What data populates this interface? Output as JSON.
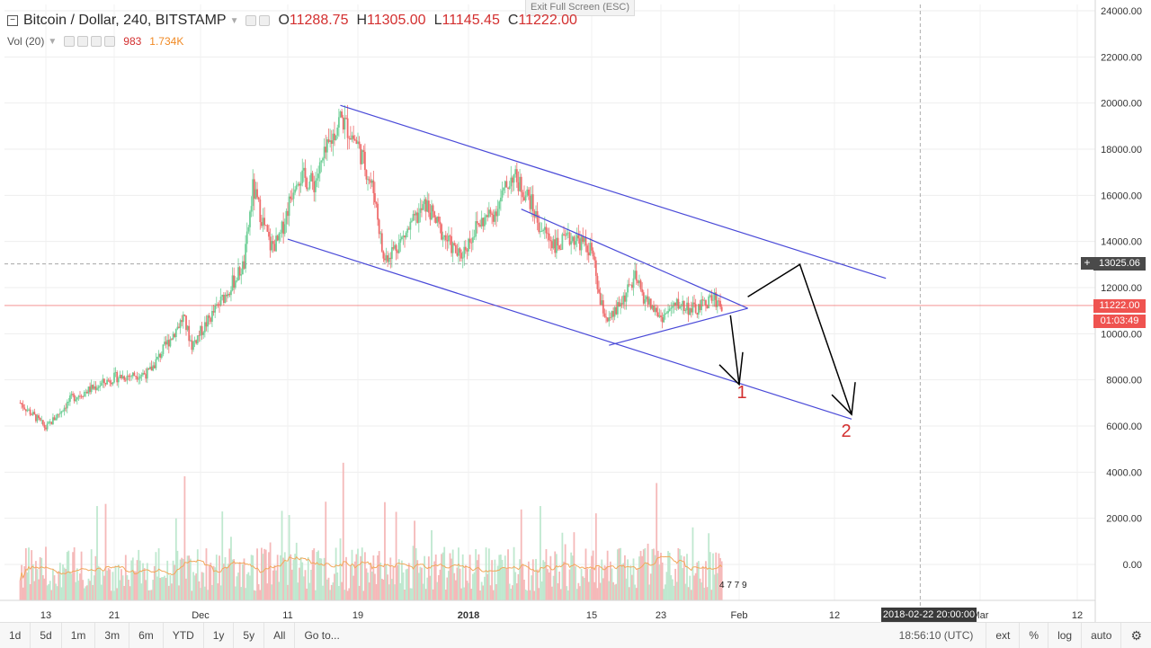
{
  "window": {
    "exit_fullscreen": "Exit Full Screen (ESC)"
  },
  "legend": {
    "symbol": "Bitcoin / Dollar, 240, BITSTAMP",
    "open_label": "O",
    "open": "11288.75",
    "high_label": "H",
    "high": "11305.00",
    "low_label": "L",
    "low": "11145.45",
    "close_label": "C",
    "close": "11222.00",
    "volume_label": "Vol (20)",
    "volume_value": "983",
    "volume_ma": "1.734K"
  },
  "price_tags": {
    "crosshair_price": "13025.06",
    "last_price": "11222.00",
    "countdown": "01:03:49"
  },
  "crosshair_date": "2018-02-22 20:00:00",
  "annotations": {
    "target1": "1",
    "target2": "2",
    "badge_digits": "4 7 7 9"
  },
  "toolbar": {
    "ranges": [
      "1d",
      "5d",
      "1m",
      "3m",
      "6m",
      "YTD",
      "1y",
      "5y",
      "All"
    ],
    "goto": "Go to...",
    "time": "18:56:10 (UTC)",
    "options": [
      "ext",
      "%",
      "log",
      "auto"
    ],
    "settings_icon": "gear-icon"
  },
  "colors": {
    "up": "#6fcf97",
    "down": "#ef6c6c",
    "trendline": "#4a4ad8",
    "annotation": "#000000",
    "target_label": "#d32f2f",
    "last_price": "#ef5350",
    "vol_ma": "#f2a85b"
  },
  "chart_data": {
    "type": "candlestick",
    "title": "Bitcoin / Dollar, 240, BITSTAMP",
    "y_axis": {
      "ticks": [
        "24000.00",
        "22000.00",
        "20000.00",
        "18000.00",
        "16000.00",
        "14000.00",
        "12000.00",
        "10000.00",
        "8000.00",
        "6000.00",
        "4000.00",
        "2000.00",
        "0.00"
      ],
      "range": [
        0,
        24000
      ]
    },
    "x_axis": {
      "ticks": [
        "13",
        "21",
        "Dec",
        "11",
        "19",
        "2018",
        "15",
        "23",
        "Feb",
        "12",
        "Mar",
        "12"
      ]
    },
    "price_path": [
      {
        "date": "Nov 10",
        "price": 7000
      },
      {
        "date": "Nov 12",
        "price": 6300
      },
      {
        "date": "Nov 13",
        "price": 5900
      },
      {
        "date": "Nov 16",
        "price": 7200
      },
      {
        "date": "Nov 21",
        "price": 8100
      },
      {
        "date": "Nov 25",
        "price": 8300
      },
      {
        "date": "Nov 27",
        "price": 9500
      },
      {
        "date": "Nov 29",
        "price": 10700
      },
      {
        "date": "Nov 30",
        "price": 9500
      },
      {
        "date": "Dec 3",
        "price": 11200
      },
      {
        "date": "Dec 6",
        "price": 13000
      },
      {
        "date": "Dec 7",
        "price": 16300
      },
      {
        "date": "Dec 9",
        "price": 13800
      },
      {
        "date": "Dec 10",
        "price": 14000
      },
      {
        "date": "Dec 12",
        "price": 16900
      },
      {
        "date": "Dec 14",
        "price": 16500
      },
      {
        "date": "Dec 17",
        "price": 19400
      },
      {
        "date": "Dec 19",
        "price": 18200
      },
      {
        "date": "Dec 21",
        "price": 16000
      },
      {
        "date": "Dec 22",
        "price": 13200
      },
      {
        "date": "Dec 24",
        "price": 14000
      },
      {
        "date": "Dec 27",
        "price": 15600
      },
      {
        "date": "Dec 29",
        "price": 14300
      },
      {
        "date": "Dec 31",
        "price": 13300
      },
      {
        "date": "Jan 2",
        "price": 14700
      },
      {
        "date": "Jan 4",
        "price": 15300
      },
      {
        "date": "Jan 6",
        "price": 16900
      },
      {
        "date": "Jan 8",
        "price": 15800
      },
      {
        "date": "Jan 9",
        "price": 14700
      },
      {
        "date": "Jan 11",
        "price": 13800
      },
      {
        "date": "Jan 13",
        "price": 14200
      },
      {
        "date": "Jan 15",
        "price": 13600
      },
      {
        "date": "Jan 16",
        "price": 11300
      },
      {
        "date": "Jan 17",
        "price": 10500
      },
      {
        "date": "Jan 18",
        "price": 11100
      },
      {
        "date": "Jan 20",
        "price": 12400
      },
      {
        "date": "Jan 21",
        "price": 11600
      },
      {
        "date": "Jan 23",
        "price": 10700
      },
      {
        "date": "Jan 25",
        "price": 11300
      },
      {
        "date": "Jan 27",
        "price": 11000
      },
      {
        "date": "Jan 29",
        "price": 11600
      },
      {
        "date": "Jan 30",
        "price": 11222
      }
    ],
    "volume": {
      "series_name": "Vol (20)",
      "y_range": [
        0,
        5000
      ]
    },
    "drawings": [
      {
        "kind": "trendline",
        "from": {
          "date": "Dec 17",
          "price": 19900
        },
        "to": {
          "date": "Feb 18",
          "price": 12400
        }
      },
      {
        "kind": "trendline",
        "from": {
          "date": "Dec 11",
          "price": 14100
        },
        "to": {
          "date": "Feb 14",
          "price": 6300
        }
      },
      {
        "kind": "trendline",
        "from": {
          "date": "Jan 7",
          "price": 15400
        },
        "to": {
          "date": "Feb 2",
          "price": 11100
        }
      },
      {
        "kind": "trendline",
        "from": {
          "date": "Jan 17",
          "price": 9500
        },
        "to": {
          "date": "Feb 2",
          "price": 11100
        }
      },
      {
        "kind": "path",
        "points": [
          {
            "date": "Jan 31",
            "price": 10800
          },
          {
            "date": "Feb 1",
            "price": 7800
          }
        ]
      },
      {
        "kind": "path",
        "points": [
          {
            "date": "Feb 2",
            "price": 11600
          },
          {
            "date": "Feb 8",
            "price": 13000
          },
          {
            "date": "Feb 14",
            "price": 6500
          }
        ]
      }
    ]
  }
}
